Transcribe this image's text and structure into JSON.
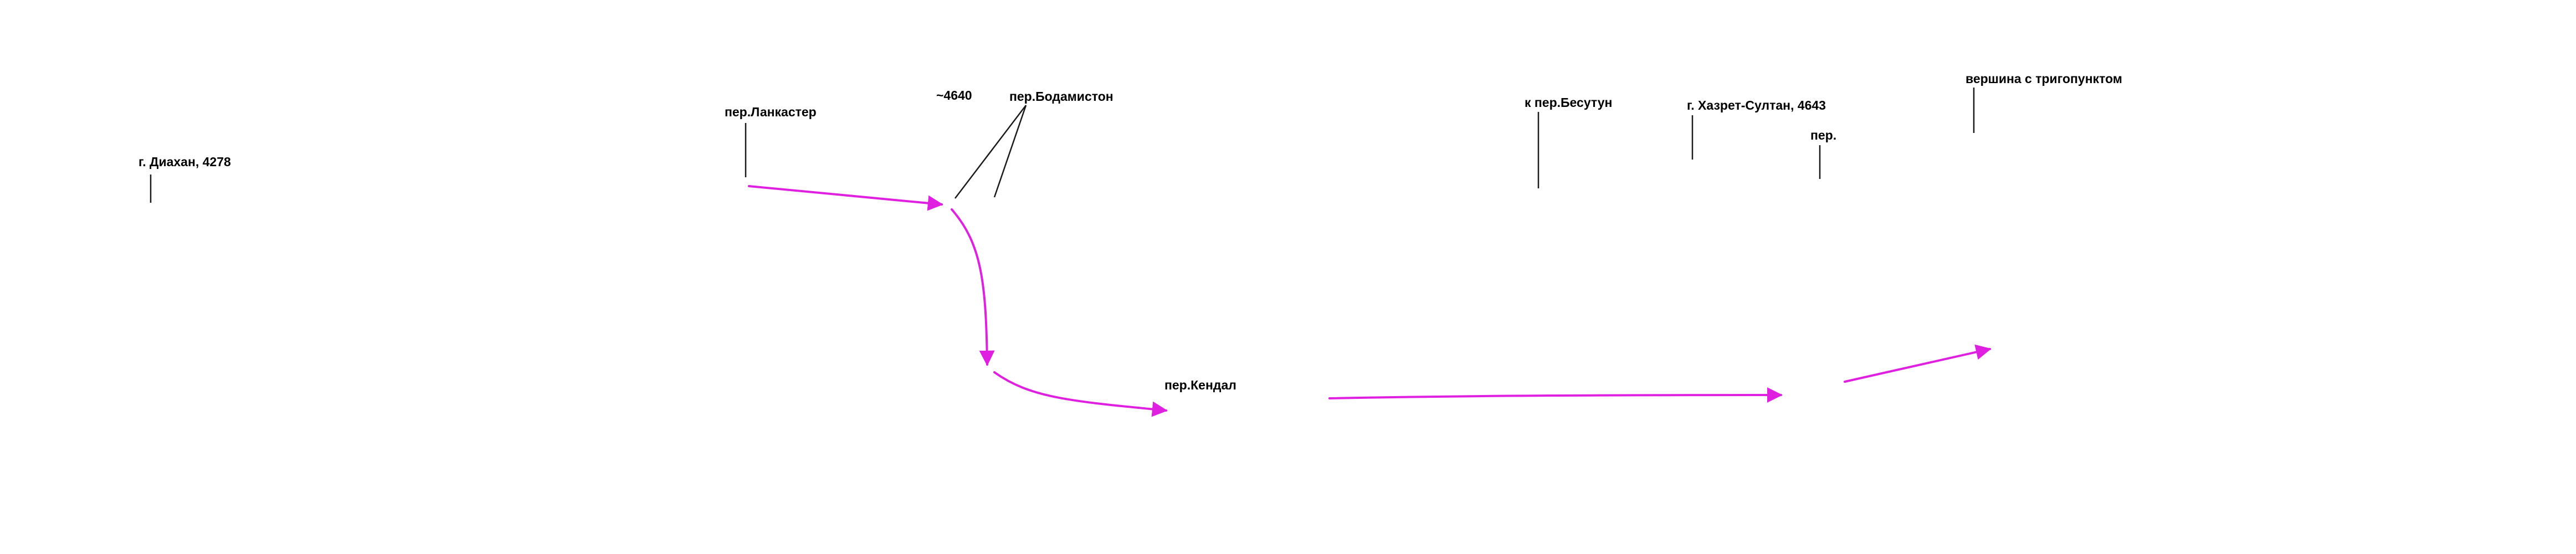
{
  "labels": {
    "diakhan": "г. Диахан, 4278",
    "lancaster": "пер.Ланкастер",
    "height_4640": "~4640",
    "bodhamiston": "пер.Бодамистон",
    "kendal": "пер.Кендал",
    "besutun": "к пер.Бесутун",
    "khazret_sultan": "г. Хазрет-Султан, 4643",
    "pass": "пер.",
    "summit": "вершина с тригопунктом"
  },
  "colors": {
    "route": "#e020e0",
    "leader": "#1a1a1a",
    "text": "#000000",
    "background": "#ffffff"
  }
}
